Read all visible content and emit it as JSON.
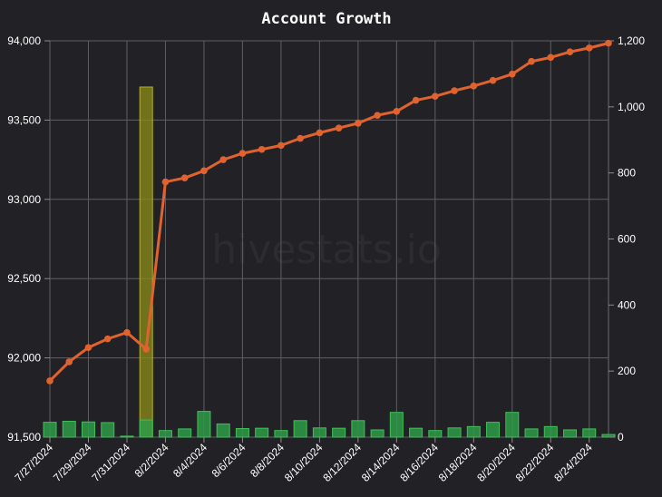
{
  "chart_data": {
    "type": "line",
    "title": "Account Growth",
    "watermark": "hivestats.io",
    "x": [
      "7/27/2024",
      "7/28/2024",
      "7/29/2024",
      "7/30/2024",
      "7/31/2024",
      "8/1/2024",
      "8/2/2024",
      "8/3/2024",
      "8/4/2024",
      "8/5/2024",
      "8/6/2024",
      "8/7/2024",
      "8/8/2024",
      "8/9/2024",
      "8/10/2024",
      "8/11/2024",
      "8/12/2024",
      "8/13/2024",
      "8/14/2024",
      "8/15/2024",
      "8/16/2024",
      "8/17/2024",
      "8/18/2024",
      "8/19/2024",
      "8/20/2024",
      "8/21/2024",
      "8/22/2024",
      "8/23/2024",
      "8/24/2024",
      "8/25/2024"
    ],
    "x_tick_labels": [
      "7/27/2024",
      "7/29/2024",
      "7/31/2024",
      "8/2/2024",
      "8/4/2024",
      "8/6/2024",
      "8/8/2024",
      "8/10/2024",
      "8/12/2024",
      "8/14/2024",
      "8/16/2024",
      "8/18/2024",
      "8/20/2024",
      "8/22/2024",
      "8/24/2024"
    ],
    "series": [
      {
        "axis": "left",
        "render": "line",
        "color": "#e0622f",
        "values": [
          91855,
          91975,
          92065,
          92120,
          92160,
          92055,
          93110,
          93135,
          93180,
          93250,
          93290,
          93315,
          93340,
          93385,
          93420,
          93450,
          93480,
          93530,
          93555,
          93625,
          93650,
          93685,
          93715,
          93750,
          93790,
          93870,
          93895,
          93930,
          93955,
          93985
        ]
      },
      {
        "axis": "right",
        "render": "bar",
        "color": "#2e9b46",
        "highlight_color": "#8d8c1a",
        "values": [
          45,
          48,
          46,
          44,
          3,
          52,
          20,
          25,
          78,
          40,
          26,
          27,
          20,
          50,
          28,
          27,
          50,
          22,
          75,
          27,
          20,
          28,
          32,
          45,
          75,
          25,
          32,
          22,
          25,
          8
        ],
        "highlight_values": [
          null,
          null,
          null,
          null,
          null,
          1060,
          null,
          null,
          null,
          null,
          null,
          null,
          null,
          null,
          null,
          null,
          null,
          null,
          null,
          null,
          null,
          null,
          null,
          null,
          null,
          null,
          null,
          null,
          null,
          null
        ]
      }
    ],
    "y_left": {
      "min": 91500,
      "max": 94000,
      "ticks": [
        "91,500",
        "92,000",
        "92,500",
        "93,000",
        "93,500",
        "94,000"
      ]
    },
    "y_right": {
      "min": 0,
      "max": 1200,
      "ticks": [
        "0",
        "200",
        "400",
        "600",
        "800",
        "1,000",
        "1,200"
      ]
    },
    "grid": true,
    "legend": "none"
  }
}
